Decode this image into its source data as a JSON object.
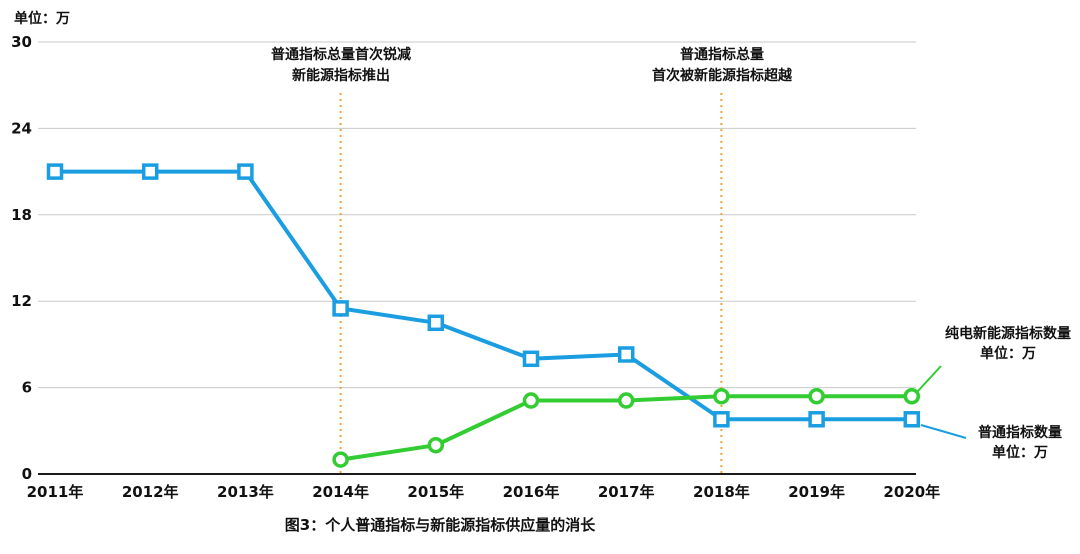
{
  "unit_label": "单位：万",
  "title": "图3：个人普通指标与新能源指标供应量的消长",
  "annotations": [
    {
      "x_index": 3,
      "line1": "普通指标总量首次锐减",
      "line2": "新能源指标推出"
    },
    {
      "x_index": 7,
      "line1": "普通指标总量",
      "line2": "首次被新能源指标超越"
    }
  ],
  "series_labels": {
    "green": {
      "line1": "纯电新能源指标数量",
      "line2": "单位：万"
    },
    "blue": {
      "line1": "普通指标数量",
      "line2": "单位：万"
    }
  },
  "colors": {
    "blue": "#1B9DE2",
    "green": "#33CC33",
    "annotation_line": "#F0A23C",
    "grid": "#C9C9C9",
    "axis": "#1A1A1A",
    "text": "#111111"
  },
  "chart_data": {
    "type": "line",
    "title": "图3：个人普通指标与新能源指标供应量的消长",
    "ylabel": "单位：万",
    "xlabel": "",
    "categories": [
      "2011年",
      "2012年",
      "2013年",
      "2014年",
      "2015年",
      "2016年",
      "2017年",
      "2018年",
      "2019年",
      "2020年"
    ],
    "yticks": [
      0,
      6,
      12,
      18,
      24,
      30
    ],
    "ylim": [
      0,
      30
    ],
    "grid": "horizontal",
    "legend_position": "right-labels",
    "series": [
      {
        "name": "普通指标数量",
        "unit": "万",
        "color_key": "blue",
        "marker": "square",
        "values": [
          21,
          21,
          21,
          11.5,
          10.5,
          8,
          8.3,
          3.8,
          3.8,
          3.8
        ]
      },
      {
        "name": "纯电新能源指标数量",
        "unit": "万",
        "color_key": "green",
        "marker": "circle",
        "values": [
          null,
          null,
          null,
          1,
          2,
          5.1,
          5.1,
          5.4,
          5.4,
          5.4
        ]
      }
    ],
    "annotations": [
      {
        "x": "2014年",
        "text": "普通指标总量首次锐减 新能源指标推出"
      },
      {
        "x": "2018年",
        "text": "普通指标总量 首次被新能源指标超越"
      }
    ]
  }
}
